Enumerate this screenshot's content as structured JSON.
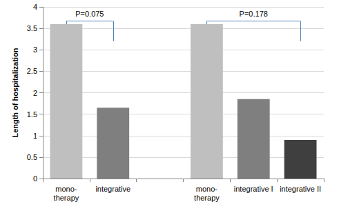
{
  "chart_data": {
    "type": "bar",
    "y_label": "Length of hospitalization",
    "categories": [
      "mono-\ntherapy",
      "integrative",
      null,
      "mono-\ntherapy",
      "integrative I",
      "integrative II"
    ],
    "values": [
      3.6,
      1.65,
      null,
      3.6,
      1.85,
      0.9
    ],
    "colors": [
      "#bfbfbf",
      "#7f7f7f",
      null,
      "#bfbfbf",
      "#7f7f7f",
      "#3f3f3f"
    ],
    "ylim": [
      0,
      4
    ],
    "yticks": [
      0,
      0.5,
      1,
      1.5,
      2,
      2.5,
      3,
      3.5,
      4
    ],
    "grid": true,
    "annotations": [
      {
        "text": "P=0.075",
        "from": 0,
        "to": 1,
        "y": 3.67,
        "y_end": 3.2
      },
      {
        "text": "P=0.178",
        "from": 3,
        "to": 5,
        "y": 3.67,
        "y_end": 3.2
      }
    ]
  }
}
